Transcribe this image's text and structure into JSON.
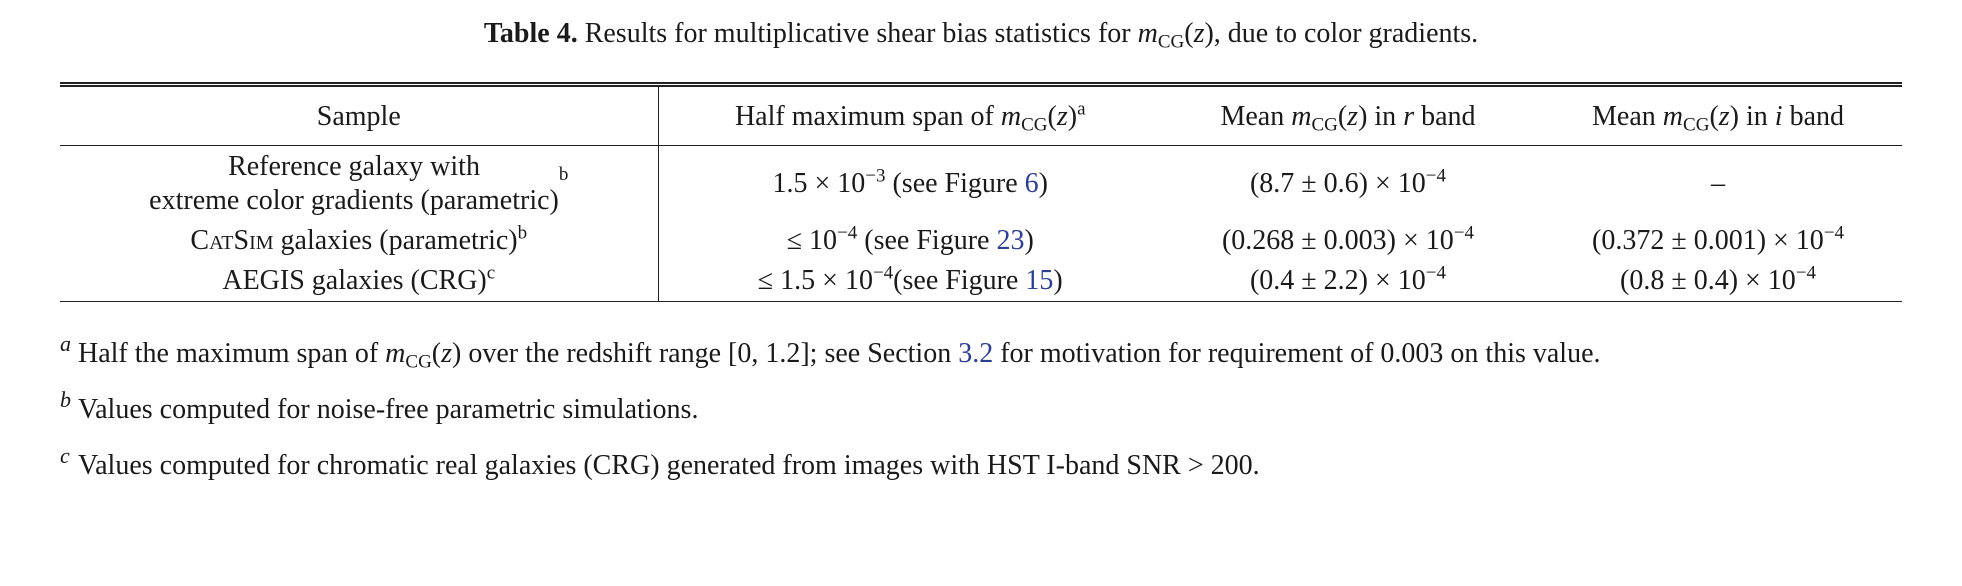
{
  "caption": [
    {
      "text": "Table 4.",
      "style": "bold"
    },
    {
      "text": " Results for multiplicative shear bias statistics for "
    },
    {
      "text": "m",
      "style": "it"
    },
    {
      "text": "CG",
      "style": "sub"
    },
    {
      "text": "("
    },
    {
      "text": "z",
      "style": "it"
    },
    {
      "text": "), due to color gradients."
    }
  ],
  "table": {
    "header": [
      [
        {
          "text": "Sample"
        }
      ],
      [
        {
          "text": "Half maximum span of "
        },
        {
          "text": "m",
          "style": "it"
        },
        {
          "text": "CG",
          "style": "sub"
        },
        {
          "text": "("
        },
        {
          "text": "z",
          "style": "it"
        },
        {
          "text": ")"
        },
        {
          "text": "a",
          "style": "sup"
        }
      ],
      [
        {
          "text": "Mean "
        },
        {
          "text": "m",
          "style": "it"
        },
        {
          "text": "CG",
          "style": "sub"
        },
        {
          "text": "("
        },
        {
          "text": "z",
          "style": "it"
        },
        {
          "text": ") in "
        },
        {
          "text": "r",
          "style": "it"
        },
        {
          "text": " band"
        }
      ],
      [
        {
          "text": "Mean "
        },
        {
          "text": "m",
          "style": "it"
        },
        {
          "text": "CG",
          "style": "sub"
        },
        {
          "text": "("
        },
        {
          "text": "z",
          "style": "it"
        },
        {
          "text": ") in "
        },
        {
          "text": "i",
          "style": "it"
        },
        {
          "text": " band"
        }
      ]
    ],
    "rows": [
      [
        [
          {
            "text": "Reference galaxy with",
            "style": "block"
          },
          {
            "text": "extreme color gradients (parametric)",
            "style": "block"
          },
          {
            "text": "b",
            "style": "sup"
          }
        ],
        [
          {
            "text": "1.5 × 10"
          },
          {
            "text": "−3",
            "style": "sup"
          },
          {
            "text": " (see Figure "
          },
          {
            "text": "6",
            "style": "link"
          },
          {
            "text": ")"
          }
        ],
        [
          {
            "text": "(8.7 ± 0.6) × 10"
          },
          {
            "text": "−4",
            "style": "sup"
          }
        ],
        [
          {
            "text": "–"
          }
        ]
      ],
      [
        [
          {
            "text": "CatSim",
            "style": "sc"
          },
          {
            "text": " galaxies (parametric)"
          },
          {
            "text": "b",
            "style": "sup"
          }
        ],
        [
          {
            "text": "≤ 10"
          },
          {
            "text": "−4",
            "style": "sup"
          },
          {
            "text": " (see Figure "
          },
          {
            "text": "23",
            "style": "link"
          },
          {
            "text": ")"
          }
        ],
        [
          {
            "text": "(0.268 ± 0.003) × 10"
          },
          {
            "text": "−4",
            "style": "sup"
          }
        ],
        [
          {
            "text": "(0.372 ± 0.001) × 10"
          },
          {
            "text": "−4",
            "style": "sup"
          }
        ]
      ],
      [
        [
          {
            "text": "AEGIS galaxies (CRG)"
          },
          {
            "text": "c",
            "style": "sup"
          }
        ],
        [
          {
            "text": "≤ 1.5 × 10"
          },
          {
            "text": "−4",
            "style": "sup"
          },
          {
            "text": "(see Figure "
          },
          {
            "text": "15",
            "style": "link"
          },
          {
            "text": ")"
          }
        ],
        [
          {
            "text": "(0.4 ± 2.2) × 10"
          },
          {
            "text": "−4",
            "style": "sup"
          }
        ],
        [
          {
            "text": "(0.8 ± 0.4) × 10"
          },
          {
            "text": "−4",
            "style": "sup"
          }
        ]
      ]
    ]
  },
  "notes": [
    {
      "mark": "a",
      "text": [
        {
          "text": "Half the maximum span of "
        },
        {
          "text": "m",
          "style": "it"
        },
        {
          "text": "CG",
          "style": "sub"
        },
        {
          "text": "("
        },
        {
          "text": "z",
          "style": "it"
        },
        {
          "text": ") over the redshift range [0, 1.2]; see Section "
        },
        {
          "text": "3.2",
          "style": "link"
        },
        {
          "text": " for motivation for requirement of 0.003 on this value."
        }
      ]
    },
    {
      "mark": "b",
      "text": [
        {
          "text": "Values computed for noise-free parametric simulations."
        }
      ]
    },
    {
      "mark": "c",
      "text": [
        {
          "text": "Values computed for chromatic real galaxies (CRG) generated from images with HST I-band SNR > 200."
        }
      ]
    }
  ]
}
